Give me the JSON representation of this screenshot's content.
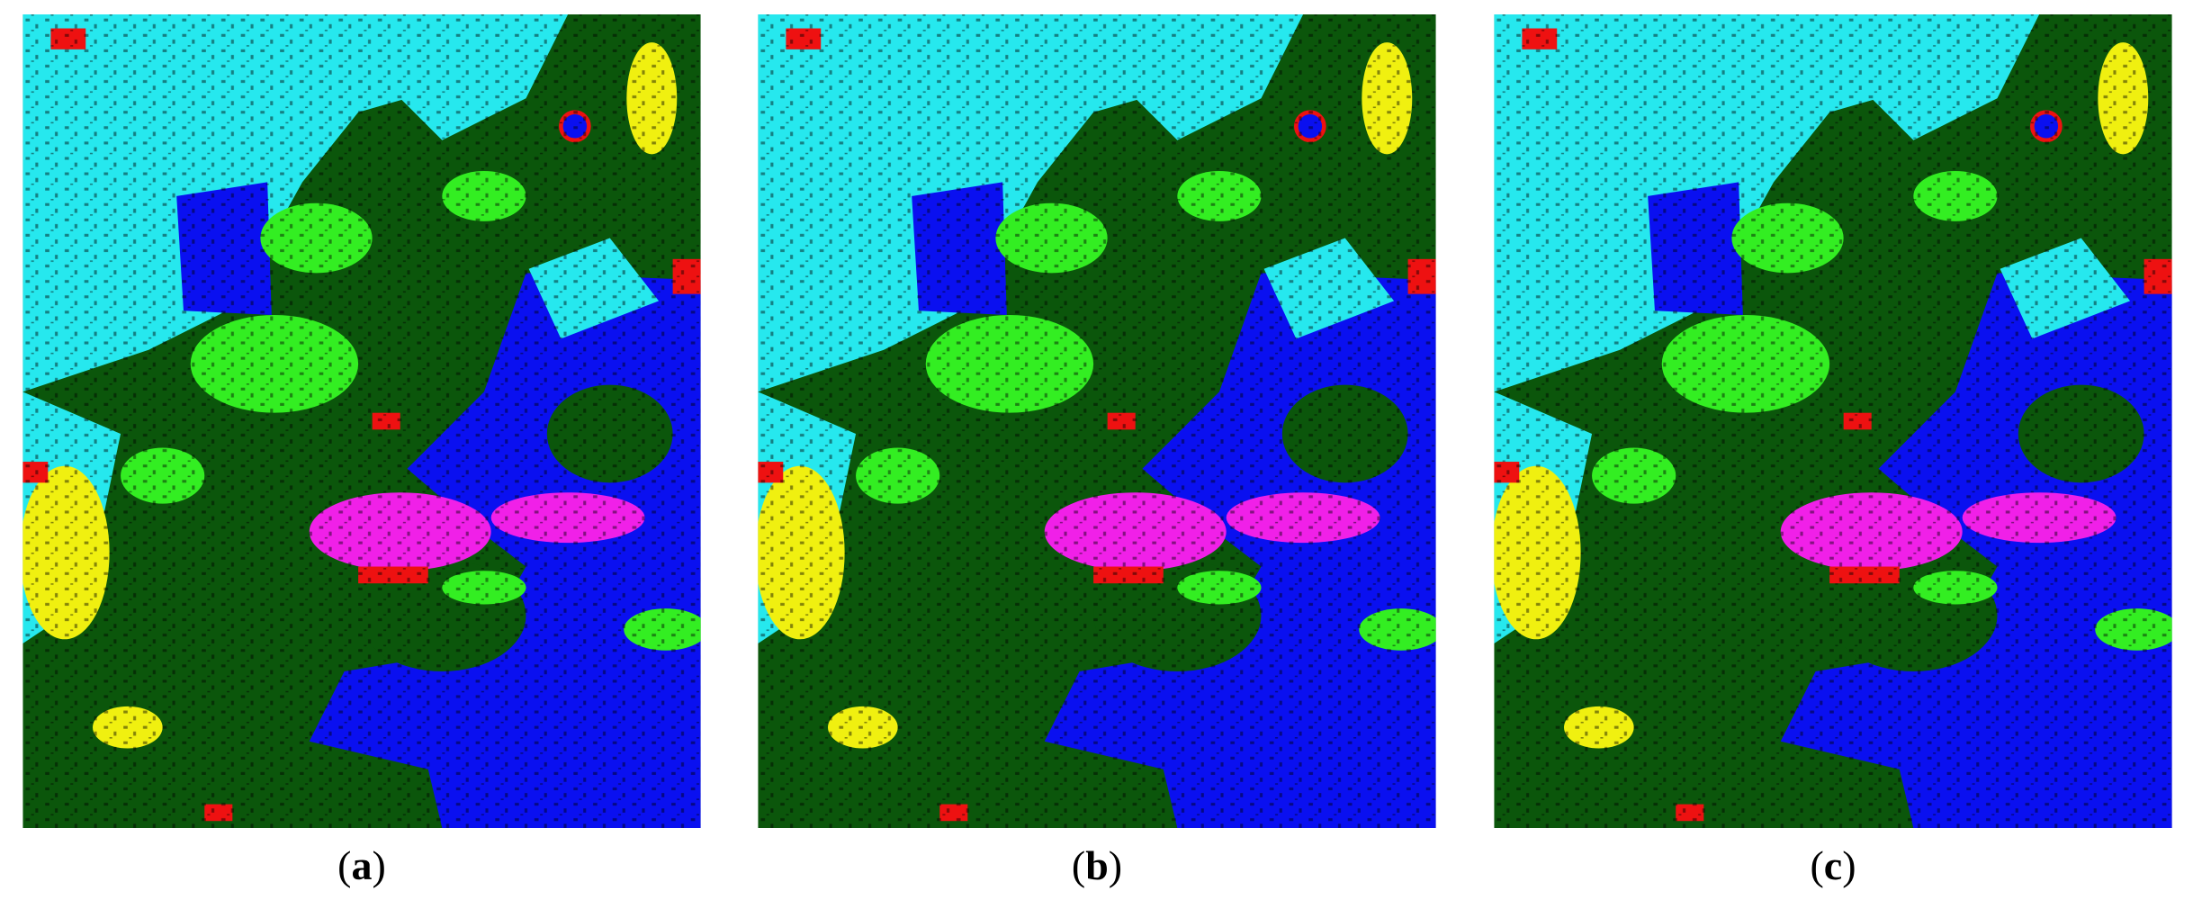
{
  "panels": [
    {
      "prefix": "(",
      "letter": "a",
      "suffix": ")"
    },
    {
      "prefix": "(",
      "letter": "b",
      "suffix": ")"
    },
    {
      "prefix": "(",
      "letter": "c",
      "suffix": ")"
    }
  ]
}
